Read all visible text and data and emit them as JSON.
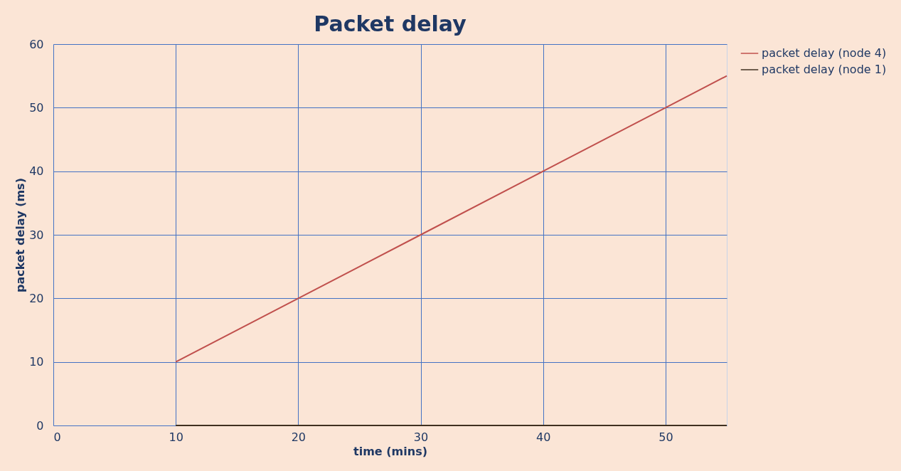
{
  "chart_data": {
    "type": "line",
    "title": "Packet delay",
    "xlabel": "time (mins)",
    "ylabel": "packet delay (ms)",
    "series": [
      {
        "name": "packet delay (node 4)",
        "color": "#c0504d",
        "x": [
          10,
          20,
          30,
          40,
          50,
          55
        ],
        "values": [
          10,
          20,
          30,
          40,
          50,
          55
        ]
      },
      {
        "name": "packet delay (node 1)",
        "color": "#403020",
        "x": [
          10,
          20,
          30,
          40,
          50,
          55
        ],
        "values": [
          0,
          0,
          0,
          0,
          0,
          0
        ]
      }
    ],
    "xlim": [
      0,
      55
    ],
    "xticks": [
      0,
      10,
      20,
      30,
      40,
      50
    ],
    "ylim": [
      0,
      60
    ],
    "yticks": [
      0,
      10,
      20,
      30,
      40,
      50,
      60
    ],
    "grid": true,
    "legend": "right",
    "marker": "none",
    "line_style": "solid"
  }
}
